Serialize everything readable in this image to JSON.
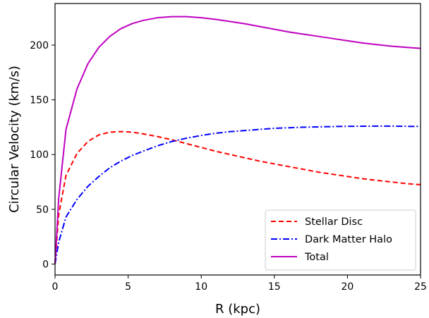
{
  "chart_data": {
    "type": "line",
    "xlabel": "R (kpc)",
    "ylabel": "Circular Velocity (km/s)",
    "xlim": [
      0,
      25
    ],
    "ylim": [
      -10,
      238
    ],
    "xticks": [
      0,
      5,
      10,
      15,
      20,
      25
    ],
    "yticks": [
      0,
      50,
      100,
      150,
      200
    ],
    "grid": false,
    "legend_position": "lower-right",
    "series": [
      {
        "name": "Stellar Disc",
        "color": "#ff0000",
        "style": "dashed",
        "x": [
          0,
          0.25,
          0.75,
          1.5,
          2.25,
          3,
          3.75,
          4.5,
          5.25,
          6,
          7,
          8,
          9,
          10,
          11,
          12,
          13,
          14,
          15,
          16,
          17,
          18,
          19,
          20,
          21,
          22,
          23,
          24,
          25
        ],
        "y": [
          0,
          45,
          81,
          101,
          112,
          118,
          120.5,
          121,
          120.5,
          119,
          116.5,
          113.5,
          110,
          106.5,
          103,
          100,
          97,
          94,
          91.5,
          89,
          86.5,
          84,
          82,
          80,
          78,
          76.5,
          75,
          73.5,
          72.5
        ]
      },
      {
        "name": "Dark Matter Halo",
        "color": "#0000ff",
        "style": "dashdot",
        "x": [
          0,
          0.25,
          0.75,
          1.5,
          2.25,
          3,
          3.75,
          4.5,
          5.25,
          6,
          7,
          8,
          9,
          10,
          11,
          12,
          13,
          14,
          15,
          16,
          17,
          18,
          19,
          20,
          21,
          22,
          23,
          24,
          25
        ],
        "y": [
          0,
          20,
          43,
          59,
          71,
          80,
          88,
          94,
          99,
          103,
          108,
          112,
          115,
          117.5,
          119.5,
          121,
          122,
          123,
          124,
          124.5,
          125,
          125.3,
          125.6,
          125.8,
          125.9,
          126,
          126,
          125.8,
          125.7
        ]
      },
      {
        "name": "Total",
        "color": "#bf00bf",
        "style": "solid",
        "x": [
          0,
          0.25,
          0.75,
          1.5,
          2.25,
          3,
          3.75,
          4.5,
          5.25,
          6,
          7,
          8,
          9,
          10,
          11,
          12,
          13,
          14,
          15,
          16,
          17,
          18,
          19,
          20,
          21,
          22,
          23,
          24,
          25
        ],
        "y": [
          0,
          60,
          123,
          160,
          183,
          198,
          208,
          215,
          219.5,
          222.5,
          225,
          226,
          226,
          225,
          223.5,
          221.5,
          219.5,
          217,
          214.5,
          212,
          210,
          208,
          206,
          204,
          202,
          200.5,
          199,
          198,
          197
        ]
      }
    ]
  }
}
